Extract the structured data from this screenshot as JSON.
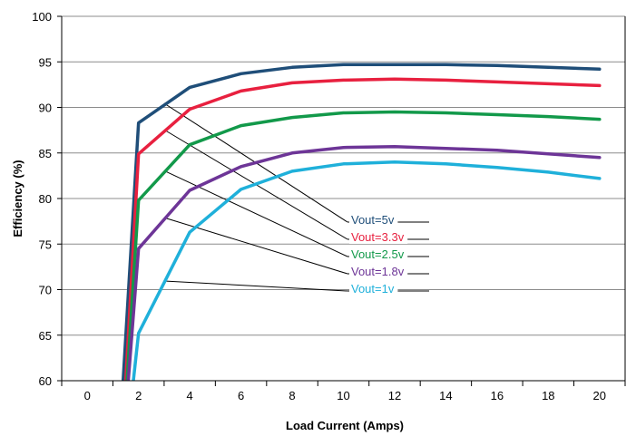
{
  "chart_data": {
    "type": "line",
    "xlabel": "Load Current (Amps)",
    "ylabel": "Efficiency (%)",
    "xlim": [
      -1,
      21
    ],
    "ylim": [
      60,
      100
    ],
    "xticks": [
      "0",
      "2",
      "4",
      "6",
      "8",
      "10",
      "12",
      "14",
      "16",
      "18",
      "20"
    ],
    "yticks": [
      "60",
      "65",
      "70",
      "75",
      "80",
      "85",
      "90",
      "95",
      "100"
    ],
    "grid": "horizontal",
    "legend": "callout labels, center-right",
    "series": [
      {
        "name": "Vout=5v",
        "color": "#1f4e79",
        "x": [
          1.4,
          2,
          4,
          6,
          8,
          10,
          12,
          14,
          16,
          18,
          20
        ],
        "y": [
          60,
          88.3,
          92.2,
          93.7,
          94.4,
          94.7,
          94.7,
          94.7,
          94.6,
          94.4,
          94.2
        ]
      },
      {
        "name": "Vout=3.3v",
        "color": "#e8203f",
        "x": [
          1.5,
          2,
          4,
          6,
          8,
          10,
          12,
          14,
          16,
          18,
          20
        ],
        "y": [
          60,
          84.9,
          89.8,
          91.8,
          92.7,
          93.0,
          93.1,
          93.0,
          92.8,
          92.6,
          92.4
        ]
      },
      {
        "name": "Vout=2.5v",
        "color": "#12994a",
        "x": [
          1.55,
          2,
          4,
          6,
          8,
          10,
          12,
          14,
          16,
          18,
          20
        ],
        "y": [
          60,
          79.8,
          85.9,
          88.0,
          88.9,
          89.4,
          89.5,
          89.4,
          89.2,
          89.0,
          88.7
        ]
      },
      {
        "name": "Vout=1.8v",
        "color": "#6d3597",
        "x": [
          1.6,
          2,
          4,
          6,
          8,
          10,
          12,
          14,
          16,
          18,
          20
        ],
        "y": [
          60,
          74.5,
          80.9,
          83.5,
          85.0,
          85.6,
          85.7,
          85.5,
          85.3,
          84.9,
          84.5
        ]
      },
      {
        "name": "Vout=1v",
        "color": "#1fb0da",
        "x": [
          1.8,
          2,
          4,
          6,
          8,
          10,
          12,
          14,
          16,
          18,
          20
        ],
        "y": [
          60,
          65.2,
          76.3,
          81.0,
          83.0,
          83.8,
          84.0,
          83.8,
          83.4,
          82.9,
          82.2
        ]
      }
    ]
  }
}
